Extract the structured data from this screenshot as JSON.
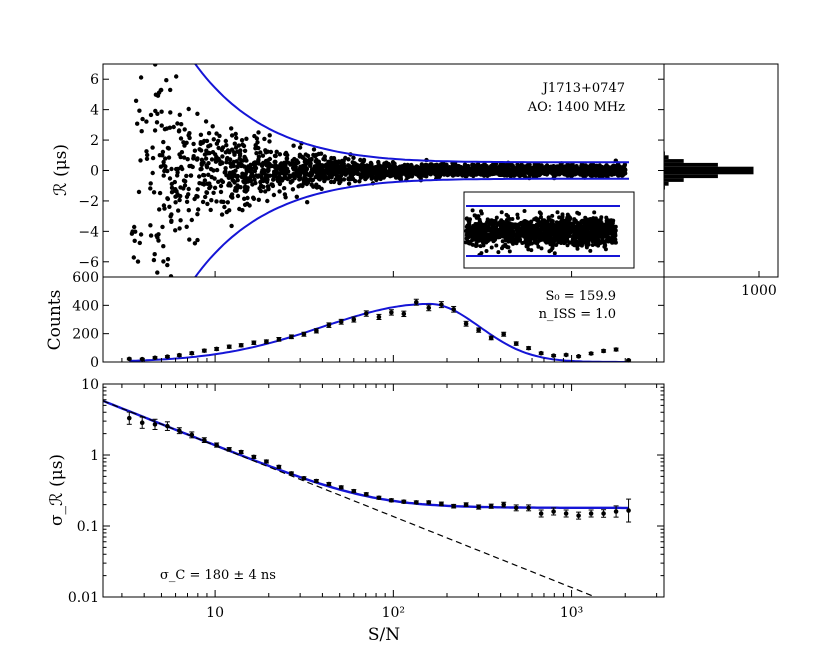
{
  "colors": {
    "model": "#1515d6",
    "points": "#000000",
    "axes": "#000000"
  },
  "chart_data": [
    {
      "type": "scatter",
      "panel": "residuals",
      "ylabel": "ℛ (μs)",
      "ylim": [
        -7,
        7
      ],
      "xscale": "log",
      "xlim": [
        2.35,
        3300
      ],
      "yticks": [
        "−6",
        "−4",
        "−2",
        "0",
        "2",
        "4",
        "6"
      ],
      "annotation": [
        "J1713+0747",
        "AO: 1400 MHz"
      ],
      "envelope": {
        "sigma_c_us": 0.18,
        "scale_us": 18.0,
        "n_sigma": 3
      },
      "scatter_points_approx": 2600,
      "inset": true
    },
    {
      "type": "bar",
      "panel": "histogram",
      "orientation": "horizontal",
      "xlim": [
        0,
        1200
      ],
      "xticks": [
        "1000"
      ],
      "peak_count": 1000
    },
    {
      "type": "line",
      "panel": "counts",
      "ylabel": "Counts",
      "xscale": "log",
      "ylim": [
        0,
        600
      ],
      "yticks": [
        "0",
        "200",
        "400",
        "600"
      ],
      "annotation": [
        "S₀ = 159.9",
        "n_ISS = 1.0"
      ],
      "x": [
        3.3,
        3.9,
        4.6,
        5.4,
        6.3,
        7.4,
        8.7,
        10.2,
        12,
        14,
        16.5,
        19.4,
        22.8,
        26.8,
        31.5,
        37,
        43.5,
        51,
        60,
        70.5,
        83,
        97.5,
        114.5,
        134.5,
        158,
        186,
        218,
        256,
        301,
        354,
        416,
        489,
        574,
        675,
        793,
        932,
        1095,
        1287,
        1512,
        1777,
        2088
      ],
      "y": [
        22,
        20,
        30,
        38,
        48,
        62,
        80,
        92,
        108,
        118,
        136,
        144,
        160,
        178,
        196,
        220,
        260,
        284,
        300,
        342,
        318,
        350,
        340,
        422,
        382,
        405,
        372,
        270,
        225,
        170,
        196,
        130,
        98,
        62,
        45,
        50,
        40,
        60,
        78,
        88,
        12
      ],
      "yerr": [
        6,
        6,
        7,
        7,
        8,
        9,
        10,
        10,
        11,
        11,
        12,
        12,
        13,
        13,
        14,
        15,
        16,
        17,
        18,
        19,
        18,
        19,
        19,
        21,
        20,
        21,
        20,
        17,
        15,
        13,
        14,
        12,
        10,
        8,
        7,
        7,
        6,
        8,
        9,
        10,
        4
      ],
      "model": {
        "S0": 159.9,
        "n_ISS": 1.0,
        "peak_counts": 410,
        "x_range": [
          3.3,
          2100
        ]
      }
    },
    {
      "type": "line",
      "panel": "sigma",
      "ylabel": "σ_ℛ (μs)",
      "xlabel": "S/N",
      "xscale": "log",
      "yscale": "log",
      "ylim": [
        0.01,
        10
      ],
      "yticks": [
        "10",
        "1",
        "0.1",
        "0.01"
      ],
      "xticks": [
        "10",
        "10²",
        "10³"
      ],
      "annotation": "σ_C = 180 ± 4 ns",
      "x": [
        3.3,
        3.9,
        4.6,
        5.4,
        6.3,
        7.4,
        8.7,
        10.2,
        12,
        14,
        16.5,
        19.4,
        22.8,
        26.8,
        31.5,
        37,
        43.5,
        51,
        60,
        70.5,
        83,
        97.5,
        114.5,
        134.5,
        158,
        186,
        218,
        256,
        301,
        354,
        416,
        489,
        574,
        675,
        793,
        932,
        1095,
        1287,
        1512,
        1777,
        2088
      ],
      "y": [
        3.3,
        2.85,
        2.7,
        2.55,
        2.2,
        1.92,
        1.62,
        1.38,
        1.2,
        1.1,
        0.94,
        0.81,
        0.68,
        0.55,
        0.47,
        0.43,
        0.39,
        0.35,
        0.31,
        0.28,
        0.25,
        0.23,
        0.22,
        0.215,
        0.215,
        0.205,
        0.19,
        0.2,
        0.185,
        0.19,
        0.2,
        0.18,
        0.18,
        0.15,
        0.16,
        0.15,
        0.14,
        0.15,
        0.15,
        0.16,
        0.165
      ],
      "errfactor": [
        1.22,
        1.2,
        1.18,
        1.15,
        1.1,
        1.1,
        1.08,
        1.07,
        1.06,
        1.05,
        1.05,
        1.05,
        1.05,
        1.05,
        1.05,
        1.05,
        1.05,
        1.05,
        1.05,
        1.05,
        1.05,
        1.05,
        1.05,
        1.05,
        1.05,
        1.06,
        1.06,
        1.06,
        1.07,
        1.07,
        1.08,
        1.1,
        1.1,
        1.12,
        1.12,
        1.12,
        1.12,
        1.12,
        1.13,
        1.2,
        1.45
      ],
      "model": {
        "sigma_c_us": 0.18,
        "amplitude_us": 13.6,
        "exponent": -1
      },
      "radiometer_line": {
        "amplitude_us": 13.6,
        "exponent": -1,
        "style": "dashed"
      }
    }
  ]
}
